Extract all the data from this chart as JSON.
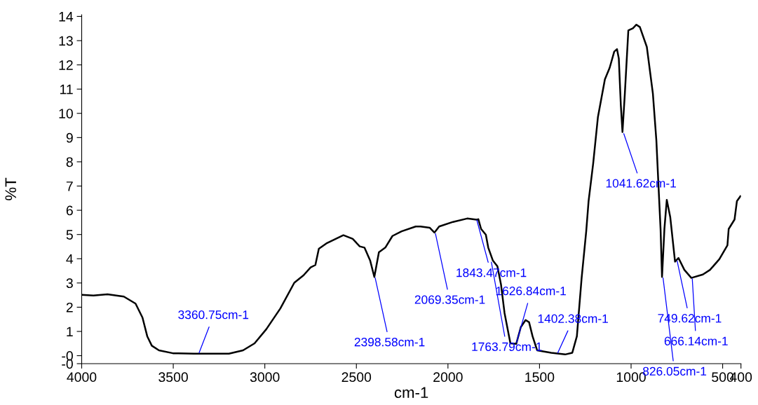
{
  "chart_data": {
    "type": "line",
    "xlabel": "cm-1",
    "ylabel": "%T",
    "xlim": [
      4000,
      400
    ],
    "xticks": [
      4000,
      3500,
      3000,
      2500,
      2000,
      1500,
      1000,
      500,
      400
    ],
    "ylim": [
      -0.33,
      14.07
    ],
    "yticks": [
      {
        "value": -0.33,
        "label": "-0"
      },
      {
        "value": 0,
        "label": "-0"
      },
      1,
      2,
      3,
      4,
      5,
      6,
      7,
      8,
      9,
      10,
      11,
      12,
      13,
      14
    ],
    "grid": false,
    "legend": false,
    "marker": "none",
    "line_style": "solid",
    "series": [
      {
        "color": "#000000",
        "x": [
          4000,
          3936,
          3859,
          3770,
          3706,
          3668,
          3642,
          3617,
          3578,
          3502,
          3387,
          3196,
          3119,
          3056,
          2992,
          2915,
          2839,
          2788,
          2750,
          2724,
          2705,
          2660,
          2571,
          2520,
          2482,
          2456,
          2425,
          2402,
          2377,
          2342,
          2303,
          2253,
          2176,
          2150,
          2100,
          2074,
          2048,
          1972,
          1895,
          1844,
          1834,
          1819,
          1793,
          1780,
          1755,
          1730,
          1710,
          1691,
          1659,
          1627,
          1602,
          1576,
          1557,
          1538,
          1513,
          1436,
          1360,
          1321,
          1296,
          1270,
          1245,
          1232,
          1207,
          1181,
          1143,
          1117,
          1092,
          1077,
          1067,
          1056,
          1047,
          1034,
          1015,
          990,
          971,
          952,
          914,
          881,
          862,
          850,
          839,
          831,
          818,
          805,
          786,
          760,
          741,
          709,
          671,
          608,
          569,
          518,
          474,
          467,
          435,
          422,
          403
        ],
        "values": [
          2.51,
          2.48,
          2.53,
          2.44,
          2.15,
          1.57,
          0.8,
          0.41,
          0.22,
          0.1,
          0.08,
          0.08,
          0.22,
          0.51,
          1.09,
          1.95,
          3.01,
          3.32,
          3.64,
          3.74,
          4.41,
          4.65,
          4.97,
          4.82,
          4.51,
          4.46,
          3.93,
          3.25,
          4.27,
          4.46,
          4.94,
          5.13,
          5.33,
          5.33,
          5.28,
          5.08,
          5.33,
          5.52,
          5.66,
          5.61,
          5.63,
          5.23,
          4.99,
          4.46,
          3.93,
          3.69,
          2.92,
          1.76,
          0.51,
          0.49,
          1.18,
          1.47,
          1.38,
          0.8,
          0.22,
          0.12,
          0.05,
          0.12,
          0.8,
          3.21,
          5.13,
          6.38,
          7.93,
          9.85,
          11.4,
          11.88,
          12.55,
          12.65,
          12.26,
          10.34,
          9.23,
          10.82,
          13.42,
          13.51,
          13.66,
          13.56,
          12.74,
          10.82,
          8.89,
          6.96,
          5.23,
          3.25,
          5.23,
          6.43,
          5.71,
          3.88,
          4.03,
          3.54,
          3.21,
          3.35,
          3.54,
          3.98,
          4.55,
          5.23,
          5.62,
          6.38,
          6.58
        ]
      }
    ],
    "annotations": [
      {
        "text": "3360.75cm-1",
        "x": 3360.75,
        "y": 0.08
      },
      {
        "text": "2398.58cm-1",
        "x": 2398.58,
        "y": 3.25
      },
      {
        "text": "2069.35cm-1",
        "x": 2069.35,
        "y": 5.08
      },
      {
        "text": "1843.47cm-1",
        "x": 1843.47,
        "y": 5.63
      },
      {
        "text": "1763.79cm-1",
        "x": 1763.79,
        "y": 3.9
      },
      {
        "text": "1626.84cm-1",
        "x": 1626.84,
        "y": 0.5
      },
      {
        "text": "1402.38cm-1",
        "x": 1402.38,
        "y": 0.08
      },
      {
        "text": "1041.62cm-1",
        "x": 1041.62,
        "y": 9.2
      },
      {
        "text": "826.05cm-1",
        "x": 826.05,
        "y": 3.25
      },
      {
        "text": "749.62cm-1",
        "x": 749.62,
        "y": 3.95
      },
      {
        "text": "666.14cm-1",
        "x": 666.14,
        "y": 3.21
      }
    ]
  }
}
